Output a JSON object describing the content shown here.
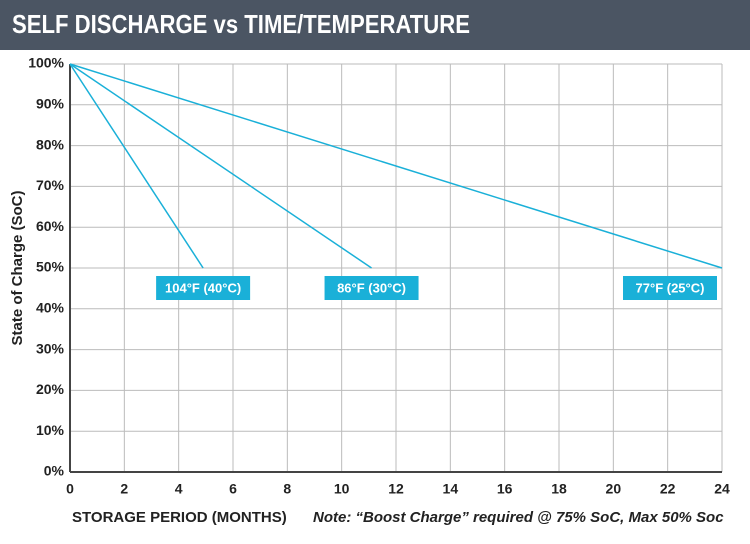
{
  "chart_data": {
    "type": "line",
    "title": "SELF DISCHARGE vs TIME/TEMPERATURE",
    "x_label": "STORAGE PERIOD (MONTHS)",
    "y_label": "State of Charge (SoC)",
    "note": "Note: “Boost Charge” required @ 75% SoC, Max 50% Soc",
    "series": [
      {
        "name": "104°F (40°C)",
        "color": "#1ab0d8",
        "x": [
          0,
          4.9
        ],
        "values": [
          100,
          50
        ]
      },
      {
        "name": "86°F (30°C)",
        "color": "#1ab0d8",
        "x": [
          0,
          11.1
        ],
        "values": [
          100,
          50
        ]
      },
      {
        "name": "77°F (25°C)",
        "color": "#1ab0d8",
        "x": [
          0,
          24
        ],
        "values": [
          100,
          50
        ]
      }
    ],
    "xlim": [
      0,
      24
    ],
    "xticks": [
      0,
      2,
      4,
      6,
      8,
      10,
      12,
      14,
      16,
      18,
      20,
      22,
      24
    ],
    "ylim": [
      0,
      100
    ],
    "yticks": [
      {
        "value": 0,
        "label": "0%"
      },
      {
        "value": 10,
        "label": "10%"
      },
      {
        "value": 20,
        "label": "20%"
      },
      {
        "value": 30,
        "label": "30%"
      },
      {
        "value": 40,
        "label": "40%"
      },
      {
        "value": 50,
        "label": "50%"
      },
      {
        "value": 60,
        "label": "60%"
      },
      {
        "value": 70,
        "label": "70%"
      },
      {
        "value": 80,
        "label": "80%"
      },
      {
        "value": 90,
        "label": "90%"
      },
      {
        "value": 100,
        "label": "100%"
      }
    ],
    "grid": true
  }
}
